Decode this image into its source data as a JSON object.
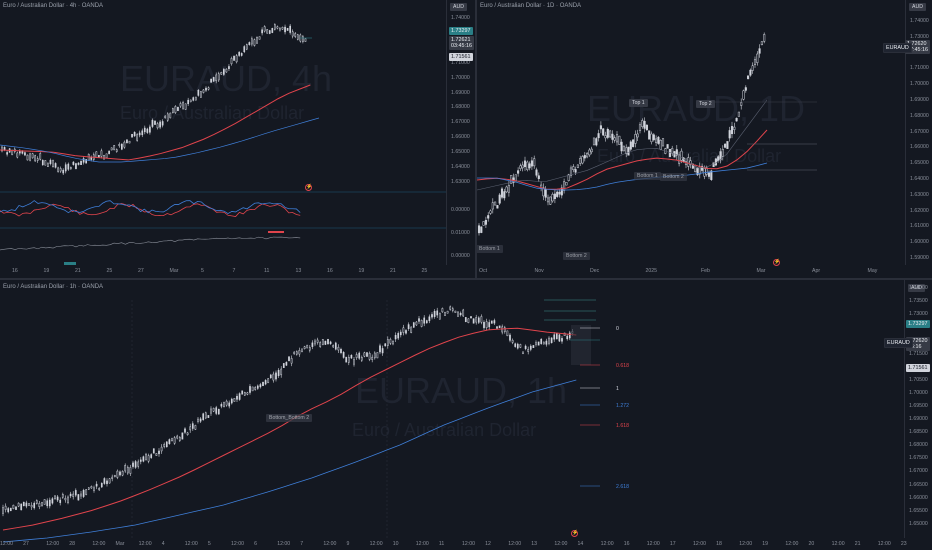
{
  "panes": {
    "tl": {
      "title": "Euro / Australian Dollar · 4h · OANDA",
      "currency": "AUD",
      "watermark": "EURAUD, 4h",
      "watermark_sub": "Euro / Australian Dollar",
      "price_ticks": [
        "1.74000",
        "1.73000",
        "1.72000",
        "1.71000",
        "1.70000",
        "1.69000",
        "1.68000",
        "1.67000",
        "1.66000",
        "1.65000",
        "1.64000",
        "1.63000"
      ],
      "osc_ticks": [
        "0.00000",
        "0.01000",
        "0.00000"
      ],
      "price_current": "1.73297",
      "price_label_a": "1.72621",
      "countdown": "03:45:16",
      "price_label_b": "1.71561",
      "date_ticks": [
        "16",
        "19",
        "21",
        "25",
        "27",
        "Mar",
        "5",
        "7",
        "11",
        "13",
        "16",
        "19",
        "21",
        "25"
      ]
    },
    "tr": {
      "title": "Euro / Australian Dollar · 1D · OANDA",
      "currency": "AUD",
      "watermark": "EURAUD, 1D",
      "watermark_sub": "Euro / Australian Dollar",
      "price_ticks": [
        "1.74000",
        "1.73000",
        "1.72000",
        "1.71000",
        "1.70000",
        "1.69000",
        "1.68000",
        "1.67000",
        "1.66000",
        "1.65000",
        "1.64000",
        "1.63000",
        "1.62000",
        "1.61000",
        "1.60000",
        "1.59000"
      ],
      "symbol": "EURAUD",
      "price_label": "1.72620",
      "countdown": "07:45:16",
      "annotations": {
        "top1": "Top 1",
        "top2": "Top 2",
        "bottom1": "Bottom 1",
        "bottom2": "Bottom 2",
        "bottom_a": "Bottom 1",
        "bottom_b": "Bottom 2",
        "bot_left": "Bottom 1"
      },
      "date_ticks": [
        "Oct",
        "Nov",
        "Dec",
        "2025",
        "Feb",
        "Mar",
        "Apr",
        "May"
      ]
    },
    "bottom": {
      "title": "Euro / Australian Dollar · 1h · OANDA",
      "currency": "AUD",
      "watermark": "EURAUD, 1h",
      "watermark_sub": "Euro / Australian Dollar",
      "price_ticks": [
        "1.74000",
        "1.73500",
        "1.73000",
        "1.72500",
        "1.72000",
        "1.71500",
        "1.71000",
        "1.70500",
        "1.70000",
        "1.69500",
        "1.69000",
        "1.68500",
        "1.68000",
        "1.67500",
        "1.67000",
        "1.66500",
        "1.66000",
        "1.65500",
        "1.65000"
      ],
      "price_current": "1.73297",
      "symbol": "EURAUD",
      "price_label": "1.72620",
      "countdown": "45:16",
      "price_label_b": "1.71561",
      "bottom_label": "Bottom_Bottom 2",
      "fib": {
        "f0": "0",
        "f0618": "0.618",
        "f1": "1",
        "f1272": "1.272",
        "f1618": "1.618",
        "f2618": "2.618"
      },
      "date_ticks": [
        "12:00",
        "27",
        "12:00",
        "28",
        "12:00",
        "Mar",
        "12:00",
        "4",
        "12:00",
        "5",
        "12:00",
        "6",
        "12:00",
        "7",
        "12:00",
        "9",
        "12:00",
        "10",
        "12:00",
        "11",
        "12:00",
        "12",
        "12:00",
        "13",
        "12:00",
        "14",
        "12:00",
        "16",
        "12:00",
        "17",
        "12:00",
        "18",
        "12:00",
        "19",
        "12:00",
        "20",
        "12:00",
        "21",
        "12:00",
        "23"
      ]
    }
  },
  "colors": {
    "bg": "#141821",
    "red": "#e0444c",
    "blue": "#3f7fd9",
    "candle": "#d1d4dc",
    "grid": "#1c212b",
    "fib_teal": "#3a8f8c"
  }
}
